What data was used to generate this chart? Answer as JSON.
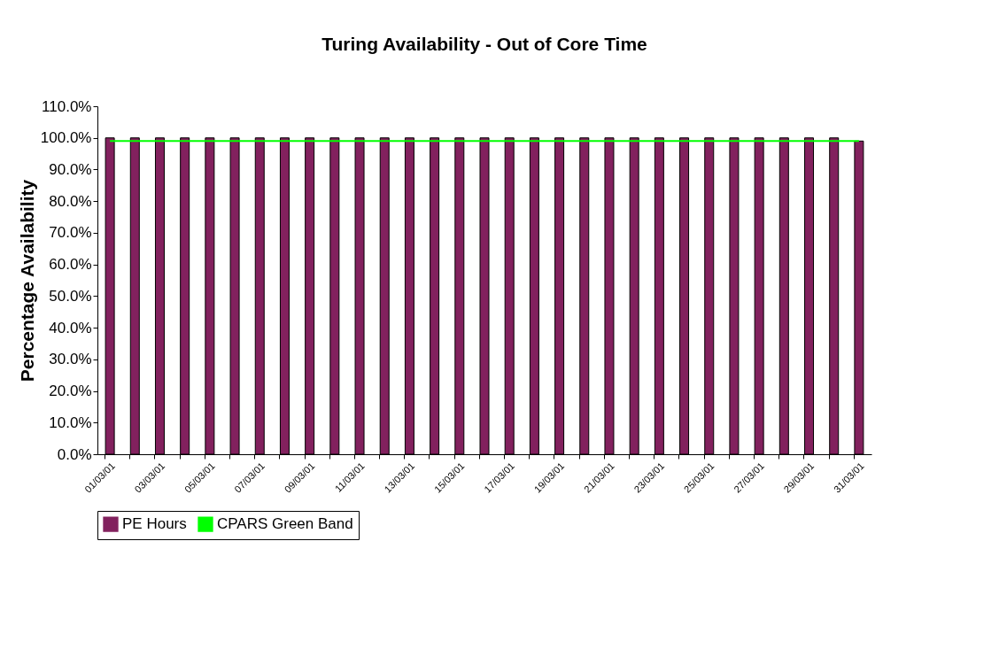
{
  "chart_data": {
    "type": "bar",
    "title": "Turing Availability - Out of Core Time",
    "ylabel": "Percentage Availability",
    "categories": [
      "01/03/01",
      null,
      "03/03/01",
      null,
      "05/03/01",
      null,
      "07/03/01",
      null,
      "09/03/01",
      null,
      "11/03/01",
      null,
      "13/03/01",
      null,
      "15/03/01",
      null,
      "17/03/01",
      null,
      "19/03/01",
      null,
      "21/03/01",
      null,
      "23/03/01",
      null,
      "25/03/01",
      null,
      "27/03/01",
      null,
      "29/03/01",
      null,
      "31/03/01"
    ],
    "series": [
      {
        "name": "PE Hours",
        "color": "#82215e",
        "values": [
          100,
          100,
          100,
          100,
          100,
          100,
          100,
          100,
          100,
          100,
          100,
          100,
          100,
          100,
          100,
          100,
          100,
          100,
          100,
          100,
          100,
          100,
          100,
          100,
          100,
          100,
          100,
          100,
          100,
          100,
          99
        ]
      },
      {
        "name": "CPARS Green Band",
        "type": "line",
        "color": "#00ff00",
        "values": [
          99,
          99,
          99,
          99,
          99,
          99,
          99,
          99,
          99,
          99,
          99,
          99,
          99,
          99,
          99,
          99,
          99,
          99,
          99,
          99,
          99,
          99,
          99,
          99,
          99,
          99,
          99,
          99,
          99,
          99,
          99
        ]
      }
    ],
    "ylim": [
      0,
      110
    ],
    "yticks": [
      {
        "value": 0,
        "label": "0.0%"
      },
      {
        "value": 10,
        "label": "10.0%"
      },
      {
        "value": 20,
        "label": "20.0%"
      },
      {
        "value": 30,
        "label": "30.0%"
      },
      {
        "value": 40,
        "label": "40.0%"
      },
      {
        "value": 50,
        "label": "50.0%"
      },
      {
        "value": 60,
        "label": "60.0%"
      },
      {
        "value": 70,
        "label": "70.0%"
      },
      {
        "value": 80,
        "label": "80.0%"
      },
      {
        "value": 90,
        "label": "90.0%"
      },
      {
        "value": 100,
        "label": "100.0%"
      },
      {
        "value": 110,
        "label": "110.0%"
      }
    ],
    "grid": false,
    "legend": "bottom"
  }
}
